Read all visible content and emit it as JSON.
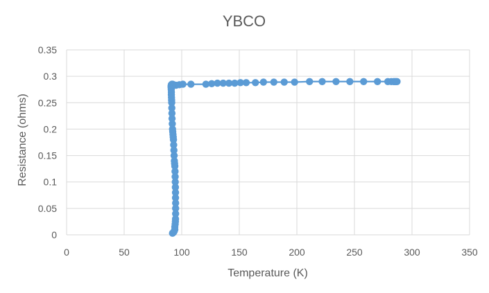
{
  "chart_data": {
    "type": "scatter",
    "title": "YBCO",
    "xlabel": "Temperature (K)",
    "ylabel": "Resistance (ohms)",
    "xlim": [
      0,
      350
    ],
    "ylim": [
      0,
      0.35
    ],
    "x_ticks": [
      "0",
      "50",
      "100",
      "150",
      "200",
      "250",
      "300",
      "350"
    ],
    "y_ticks": [
      "0",
      "0.05",
      "0.1",
      "0.15",
      "0.2",
      "0.25",
      "0.3",
      "0.35"
    ],
    "grid": true,
    "legend": "none",
    "marker_color": "#5B9BD5",
    "series": [
      {
        "connected": true,
        "x": [
          92,
          92.5,
          93,
          93.5,
          94,
          94,
          94.3,
          94.5,
          94.6,
          94.7,
          94.7,
          94.7,
          94.6,
          94.6,
          94.5,
          94.4,
          94.3,
          94.2,
          94,
          93.8,
          93.6,
          93.4,
          93.2,
          93,
          92.8,
          92.6,
          92.4,
          92.2,
          92,
          91.8,
          91.6,
          91.5,
          91.4,
          91.3,
          91.2,
          91.1,
          91,
          91,
          90.9,
          90.9,
          90.8,
          90.8,
          91,
          91.5,
          92,
          93,
          95,
          98,
          101,
          108,
          121,
          126,
          131,
          136,
          141,
          146,
          151,
          156,
          164,
          171,
          180,
          189,
          198,
          211,
          222,
          234,
          246,
          258,
          270,
          279,
          282,
          284,
          285,
          286,
          287
        ],
        "y": [
          0.003,
          0.004,
          0.005,
          0.007,
          0.01,
          0.015,
          0.02,
          0.025,
          0.03,
          0.04,
          0.05,
          0.06,
          0.07,
          0.08,
          0.09,
          0.1,
          0.11,
          0.12,
          0.13,
          0.135,
          0.14,
          0.15,
          0.16,
          0.17,
          0.18,
          0.185,
          0.19,
          0.195,
          0.2,
          0.21,
          0.22,
          0.23,
          0.24,
          0.25,
          0.255,
          0.26,
          0.265,
          0.27,
          0.275,
          0.278,
          0.28,
          0.282,
          0.284,
          0.285,
          0.285,
          0.284,
          0.283,
          0.284,
          0.285,
          0.285,
          0.285,
          0.286,
          0.287,
          0.287,
          0.287,
          0.287,
          0.288,
          0.288,
          0.288,
          0.289,
          0.289,
          0.289,
          0.289,
          0.29,
          0.29,
          0.29,
          0.29,
          0.29,
          0.29,
          0.29,
          0.29,
          0.29,
          0.29,
          0.29,
          0.29
        ]
      }
    ]
  }
}
